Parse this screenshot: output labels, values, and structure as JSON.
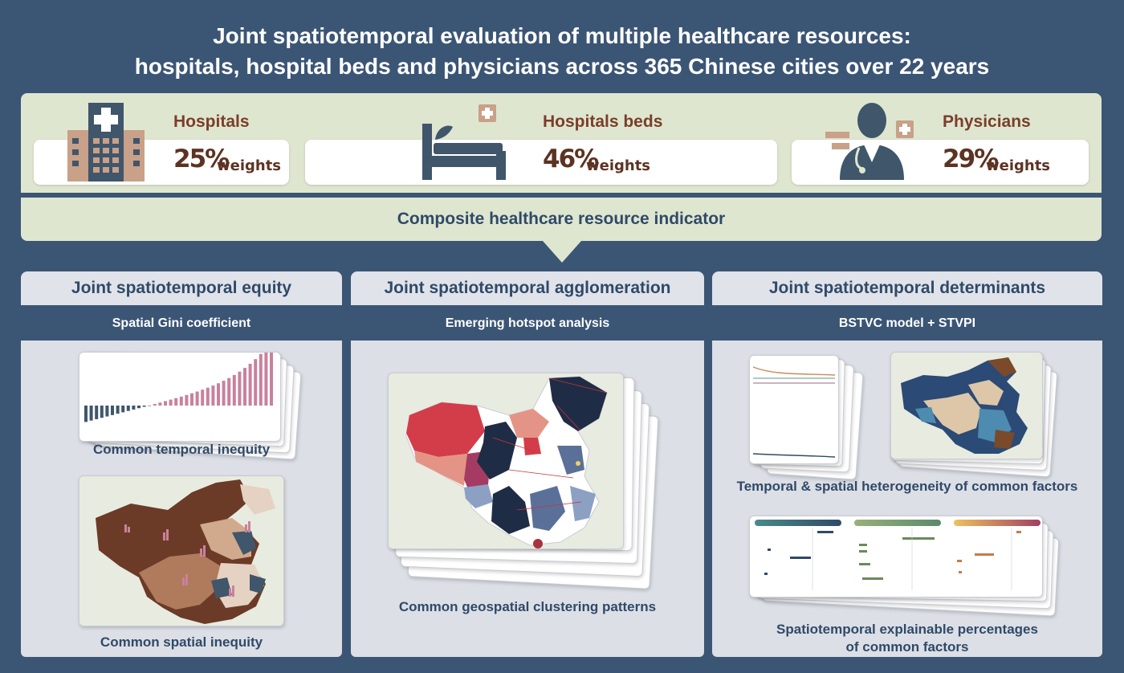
{
  "title": {
    "line1": "Joint spatiotemporal evaluation of multiple healthcare resources:",
    "line2": "hospitals, hospital beds and physicians across 365 Chinese cities over 22 years"
  },
  "resources": [
    {
      "name": "Hospitals",
      "percent": "25%",
      "weight_label": "weights",
      "icon": "hospital-building-icon"
    },
    {
      "name": "Hospitals beds",
      "percent": "46%",
      "weight_label": "weights",
      "icon": "hospital-bed-icon"
    },
    {
      "name": "Physicians",
      "percent": "29%",
      "weight_label": "weights",
      "icon": "physician-icon"
    }
  ],
  "composite": "Composite healthcare resource indicator",
  "columns": [
    {
      "heading": "Joint spatiotemporal equity",
      "method": "Spatial Gini coefficient",
      "captions": [
        "Common temporal inequity",
        "Common spatial inequity"
      ]
    },
    {
      "heading": "Joint spatiotemporal agglomeration",
      "method": "Emerging hotspot analysis",
      "captions": [
        "Common geospatial clustering patterns"
      ]
    },
    {
      "heading": "Joint spatiotemporal determinants",
      "method": "BSTVC model + STVPI",
      "captions": [
        "Temporal & spatial heterogeneity of common factors",
        "Spatiotemporal explainable percentages",
        "of common factors"
      ]
    }
  ],
  "colors": {
    "background": "#3b5575",
    "panel_green": "#dfe6d0",
    "panel_grey": "#dcdfe6",
    "brown": "#7a3e2a",
    "navy": "#2f4a68",
    "pink": "#c9819b",
    "slate": "#3f566b"
  }
}
